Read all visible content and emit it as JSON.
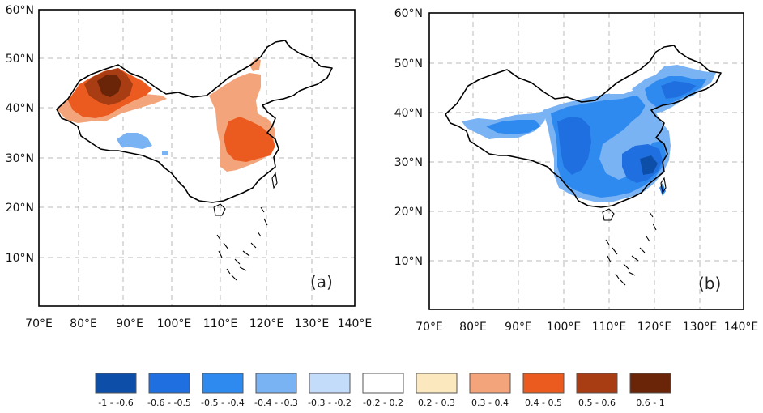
{
  "panels": [
    {
      "id": "a",
      "label": "(a)",
      "lat_ticks": [
        "10°N",
        "20°N",
        "30°N",
        "40°N",
        "50°N",
        "60°N"
      ],
      "lon_ticks": [
        "70°E",
        "80°E",
        "90°E",
        "100°E",
        "110°E",
        "120°E",
        "130°E",
        "140°E"
      ]
    },
    {
      "id": "b",
      "label": "(b)",
      "lat_ticks": [
        "10°N",
        "20°N",
        "30°N",
        "40°N",
        "50°N",
        "60°N"
      ],
      "lon_ticks": [
        "70°E",
        "80°E",
        "90°E",
        "100°E",
        "110°E",
        "120°E",
        "130°E",
        "140°E"
      ]
    }
  ],
  "legend": [
    {
      "label": "-1 - -0.6",
      "color": "#0d4fa8"
    },
    {
      "label": "-0.6 - -0.5",
      "color": "#1f6fe0"
    },
    {
      "label": "-0.5 - -0.4",
      "color": "#2f8af0"
    },
    {
      "label": "-0.4 - -0.3",
      "color": "#79b3f4"
    },
    {
      "label": "-0.3 - -0.2",
      "color": "#c3dcfa"
    },
    {
      "label": "-0.2 - 0.2",
      "color": "#ffffff"
    },
    {
      "label": "0.2 - 0.3",
      "color": "#fbe8bf"
    },
    {
      "label": "0.3 - 0.4",
      "color": "#f3a47a"
    },
    {
      "label": "0.4 - 0.5",
      "color": "#eb5a1e"
    },
    {
      "label": "0.5 - 0.6",
      "color": "#a83c12"
    },
    {
      "label": "0.6 - 1",
      "color": "#6a2408"
    }
  ],
  "colors": {
    "frame": "#000000",
    "grid": "#b8b8b8",
    "background": "#ffffff"
  }
}
